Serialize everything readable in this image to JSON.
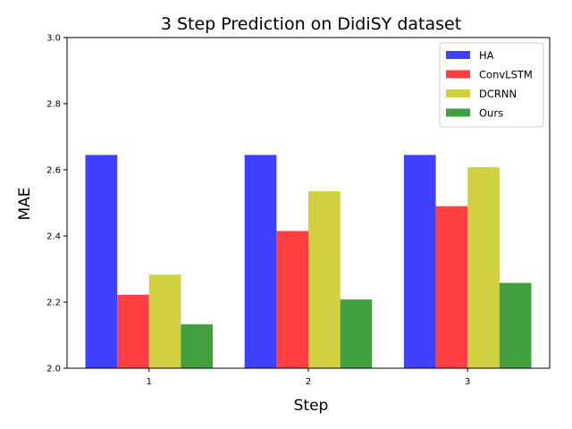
{
  "chart_data": {
    "type": "bar",
    "title": "3 Step Prediction on DidiSY dataset",
    "xlabel": "Step",
    "ylabel": "MAE",
    "categories": [
      "1",
      "2",
      "3"
    ],
    "ylim": [
      2.0,
      3.0
    ],
    "yticks": [
      "2.0",
      "2.2",
      "2.4",
      "2.6",
      "2.8",
      "3.0"
    ],
    "legend_position": "top-right",
    "grid": false,
    "series": [
      {
        "name": "HA",
        "color": "#4040ff",
        "values": [
          2.645,
          2.645,
          2.645
        ]
      },
      {
        "name": "ConvLSTM",
        "color": "#ff4040",
        "values": [
          2.222,
          2.415,
          2.49
        ]
      },
      {
        "name": "DCRNN",
        "color": "#d0d040",
        "values": [
          2.283,
          2.535,
          2.608
        ]
      },
      {
        "name": "Ours",
        "color": "#40a040",
        "values": [
          2.133,
          2.208,
          2.258
        ]
      }
    ]
  }
}
